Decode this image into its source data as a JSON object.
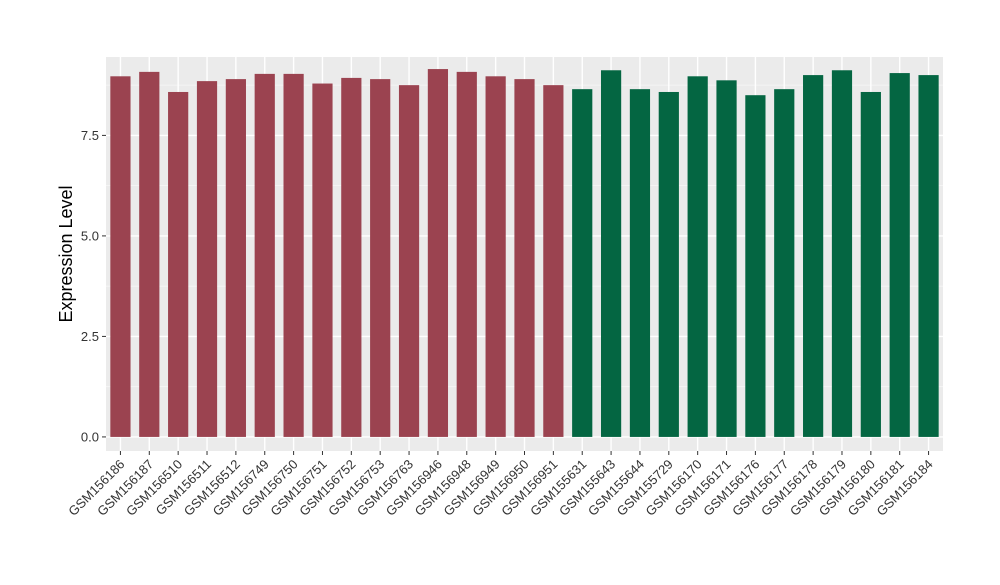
{
  "chart_data": {
    "type": "bar",
    "ylabel": "Expression Level",
    "xlabel": "",
    "ylim": [
      -0.35,
      9.45
    ],
    "yticks": [
      0.0,
      2.5,
      5.0,
      7.5
    ],
    "ytick_labels": [
      "0.0",
      "2.5",
      "5.0",
      "7.5"
    ],
    "grid": true,
    "legend": "none",
    "group_colors": {
      "group1": "#9B4350",
      "group2": "#046642"
    },
    "panel_background": "#EBEBEB",
    "categories": [
      "GSM156186",
      "GSM156187",
      "GSM156510",
      "GSM156511",
      "GSM156512",
      "GSM156749",
      "GSM156750",
      "GSM156751",
      "GSM156752",
      "GSM156753",
      "GSM156763",
      "GSM156946",
      "GSM156948",
      "GSM156949",
      "GSM156950",
      "GSM156951",
      "GSM155631",
      "GSM155643",
      "GSM155644",
      "GSM155729",
      "GSM156170",
      "GSM156171",
      "GSM156176",
      "GSM156177",
      "GSM156178",
      "GSM156179",
      "GSM156180",
      "GSM156181",
      "GSM156184"
    ],
    "values": [
      8.97,
      9.08,
      8.58,
      8.85,
      8.9,
      9.03,
      9.03,
      8.79,
      8.93,
      8.9,
      8.75,
      9.15,
      9.08,
      8.97,
      8.9,
      8.75,
      8.65,
      9.12,
      8.65,
      8.58,
      8.97,
      8.87,
      8.5,
      8.65,
      9.0,
      9.12,
      8.58,
      9.05,
      9.0
    ],
    "groups": [
      "group1",
      "group1",
      "group1",
      "group1",
      "group1",
      "group1",
      "group1",
      "group1",
      "group1",
      "group1",
      "group1",
      "group1",
      "group1",
      "group1",
      "group1",
      "group1",
      "group2",
      "group2",
      "group2",
      "group2",
      "group2",
      "group2",
      "group2",
      "group2",
      "group2",
      "group2",
      "group2",
      "group2",
      "group2"
    ]
  }
}
